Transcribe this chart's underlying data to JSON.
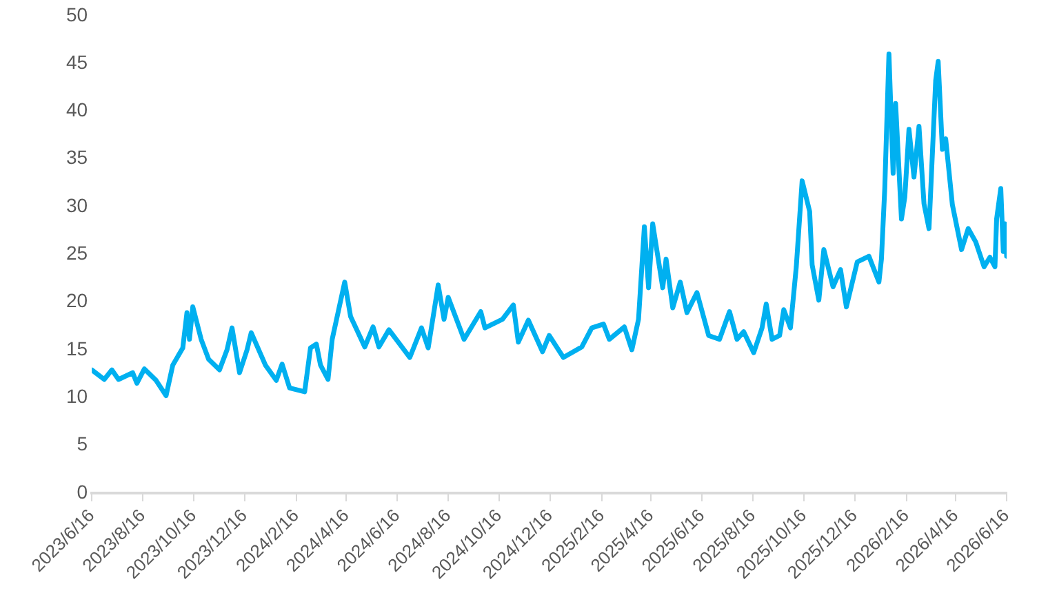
{
  "chart_data": {
    "type": "line",
    "color": "#00b0f0",
    "grid": false,
    "legend": false,
    "marker": "none",
    "line_style": "solid",
    "x": [
      "2023-06-16",
      "2023-07-01",
      "2023-07-10",
      "2023-07-18",
      "2023-08-04",
      "2023-08-09",
      "2023-08-18",
      "2023-09-01",
      "2023-09-13",
      "2023-09-21",
      "2023-10-03",
      "2023-10-08",
      "2023-10-11",
      "2023-10-15",
      "2023-10-25",
      "2023-11-03",
      "2023-11-16",
      "2023-11-25",
      "2023-12-01",
      "2023-12-10",
      "2023-12-19",
      "2023-12-24",
      "2024-01-10",
      "2024-01-23",
      "2024-01-30",
      "2024-02-08",
      "2024-02-26",
      "2024-03-04",
      "2024-03-11",
      "2024-03-16",
      "2024-03-25",
      "2024-03-30",
      "2024-04-14",
      "2024-04-21",
      "2024-05-08",
      "2024-05-18",
      "2024-05-25",
      "2024-06-06",
      "2024-07-01",
      "2024-07-15",
      "2024-07-23",
      "2024-08-04",
      "2024-08-11",
      "2024-08-16",
      "2024-09-04",
      "2024-09-24",
      "2024-09-29",
      "2024-10-20",
      "2024-11-02",
      "2024-11-08",
      "2024-11-20",
      "2024-12-07",
      "2024-12-15",
      "2025-01-01",
      "2025-01-23",
      "2025-02-04",
      "2025-02-18",
      "2025-02-25",
      "2025-03-15",
      "2025-03-24",
      "2025-04-01",
      "2025-04-08",
      "2025-04-13",
      "2025-04-18",
      "2025-04-30",
      "2025-05-04",
      "2025-05-12",
      "2025-05-21",
      "2025-05-29",
      "2025-06-10",
      "2025-06-24",
      "2025-07-07",
      "2025-07-19",
      "2025-07-28",
      "2025-08-05",
      "2025-08-17",
      "2025-08-27",
      "2025-09-01",
      "2025-09-08",
      "2025-09-17",
      "2025-09-22",
      "2025-09-30",
      "2025-10-07",
      "2025-10-14",
      "2025-10-23",
      "2025-10-26",
      "2025-11-03",
      "2025-11-09",
      "2025-11-20",
      "2025-11-29",
      "2025-12-06",
      "2025-12-19",
      "2026-01-02",
      "2026-01-14",
      "2026-01-17",
      "2026-01-21",
      "2026-01-26",
      "2026-01-31",
      "2026-02-03",
      "2026-02-10",
      "2026-02-14",
      "2026-02-19",
      "2026-02-25",
      "2026-03-03",
      "2026-03-09",
      "2026-03-15",
      "2026-03-23",
      "2026-03-26",
      "2026-03-31",
      "2026-04-04",
      "2026-04-12",
      "2026-04-23",
      "2026-05-01",
      "2026-05-10",
      "2026-05-20",
      "2026-05-27",
      "2026-06-02",
      "2026-06-04",
      "2026-06-09",
      "2026-06-12",
      "2026-06-14",
      "2026-06-16"
    ],
    "values": [
      12.9,
      11.9,
      12.9,
      11.9,
      12.6,
      11.5,
      13.0,
      11.8,
      10.2,
      13.4,
      15.2,
      18.9,
      16.1,
      19.5,
      16.1,
      14.0,
      12.9,
      15.0,
      17.3,
      12.6,
      15.0,
      16.8,
      13.4,
      11.8,
      13.5,
      11.0,
      10.6,
      15.2,
      15.6,
      13.4,
      11.9,
      16.1,
      22.1,
      18.5,
      15.3,
      17.4,
      15.3,
      17.1,
      14.2,
      17.3,
      15.2,
      21.8,
      18.2,
      20.5,
      16.1,
      19.0,
      17.3,
      18.2,
      19.7,
      15.8,
      18.1,
      14.8,
      16.5,
      14.2,
      15.3,
      17.3,
      17.7,
      16.1,
      17.4,
      15.0,
      18.2,
      27.9,
      21.5,
      28.2,
      21.5,
      24.5,
      19.4,
      22.1,
      18.9,
      21.0,
      16.5,
      16.1,
      19.0,
      16.1,
      16.9,
      14.7,
      17.3,
      19.8,
      16.1,
      16.5,
      19.2,
      17.3,
      23.7,
      32.7,
      29.5,
      23.9,
      20.2,
      25.5,
      21.6,
      23.4,
      19.5,
      24.2,
      24.8,
      22.1,
      24.5,
      31.9,
      46.0,
      33.5,
      40.8,
      28.7,
      31.0,
      38.1,
      33.1,
      38.4,
      30.3,
      27.7,
      43.2,
      45.2,
      36.0,
      37.1,
      30.2,
      25.5,
      27.7,
      26.3,
      23.7,
      24.7,
      23.7,
      28.7,
      31.9,
      25.3,
      28.2,
      24.8
    ],
    "xlim": [
      "2023-06-16",
      "2026-06-16"
    ],
    "xticks": [
      {
        "value": "2023-06-16",
        "label": "2023/6/16"
      },
      {
        "value": "2023-08-16",
        "label": "2023/8/16"
      },
      {
        "value": "2023-10-16",
        "label": "2023/10/16"
      },
      {
        "value": "2023-12-16",
        "label": "2023/12/16"
      },
      {
        "value": "2024-02-16",
        "label": "2024/2/16"
      },
      {
        "value": "2024-04-16",
        "label": "2024/4/16"
      },
      {
        "value": "2024-06-16",
        "label": "2024/6/16"
      },
      {
        "value": "2024-08-16",
        "label": "2024/8/16"
      },
      {
        "value": "2024-10-16",
        "label": "2024/10/16"
      },
      {
        "value": "2024-12-16",
        "label": "2024/12/16"
      },
      {
        "value": "2025-02-16",
        "label": "2025/2/16"
      },
      {
        "value": "2025-04-16",
        "label": "2025/4/16"
      },
      {
        "value": "2025-06-16",
        "label": "2025/6/16"
      },
      {
        "value": "2025-08-16",
        "label": "2025/8/16"
      },
      {
        "value": "2025-10-16",
        "label": "2025/10/16"
      },
      {
        "value": "2025-12-16",
        "label": "2025/12/16"
      },
      {
        "value": "2026-02-16",
        "label": "2026/2/16"
      },
      {
        "value": "2026-04-16",
        "label": "2026/4/16"
      },
      {
        "value": "2026-06-16",
        "label": "2026/6/16"
      }
    ],
    "ylim": [
      0,
      50
    ],
    "yticks": [
      0,
      5,
      10,
      15,
      20,
      25,
      30,
      35,
      40,
      45,
      50
    ]
  }
}
